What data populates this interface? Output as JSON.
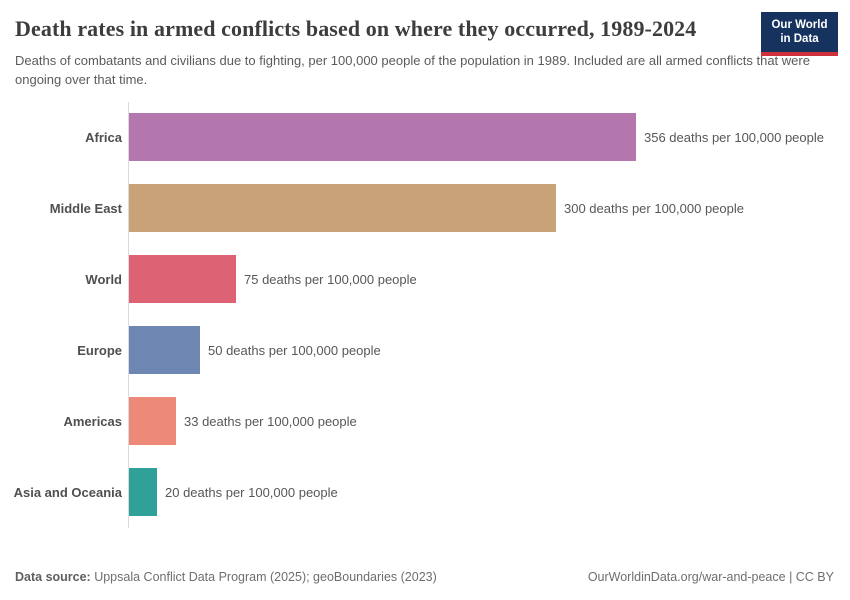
{
  "header": {
    "title": "Death rates in armed conflicts based on where they occurred, 1989-2024",
    "subtitle": "Deaths of combatants and civilians due to fighting, per 100,000 people of the population in 1989. Included are all armed conflicts that were ongoing over that time.",
    "logo": {
      "line1": "Our World",
      "line2": "in Data",
      "bg_color": "#15335e",
      "accent_color": "#cf303b"
    }
  },
  "chart_data": {
    "type": "bar",
    "orientation": "horizontal",
    "title": "Death rates in armed conflicts based on where they occurred, 1989-2024",
    "xlabel": "",
    "ylabel": "",
    "xlim": [
      0,
      356
    ],
    "grid": false,
    "categories": [
      "Africa",
      "Middle East",
      "World",
      "Europe",
      "Americas",
      "Asia and Oceania"
    ],
    "values": [
      356,
      300,
      75,
      50,
      33,
      20
    ],
    "value_labels": [
      "356 deaths per 100,000 people",
      "300 deaths per 100,000 people",
      "75 deaths per 100,000 people",
      "50 deaths per 100,000 people",
      "33 deaths per 100,000 people",
      "20 deaths per 100,000 people"
    ],
    "bar_colors": [
      "#b377ae",
      "#c9a378",
      "#dd6273",
      "#6e87b2",
      "#ec8978",
      "#2fa198"
    ]
  },
  "footer": {
    "source_label": "Data source:",
    "source_text": " Uppsala Conflict Data Program (2025); geoBoundaries (2023)",
    "license_text": "OurWorldinData.org/war-and-peace | CC BY"
  }
}
